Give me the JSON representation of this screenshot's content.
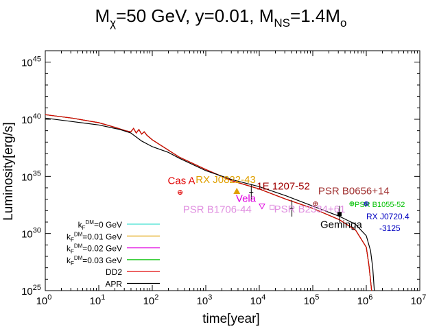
{
  "chart_data": {
    "type": "line",
    "title": "Mχ=50 GeV, y=0.01, MNS=1.4Mo",
    "title_parts": {
      "m1": "M",
      "s1": "χ",
      "t1": "=50 GeV, y=0.01, M",
      "s2": "NS",
      "t2": "=1.4M",
      "s3": "o"
    },
    "xlabel": "time[year]",
    "ylabel": "Luminosity[erg/s]",
    "xscale": "log",
    "yscale": "log",
    "xlim": [
      1,
      10000000
    ],
    "ylim": [
      1e+25,
      1e+46
    ],
    "grid": false,
    "legend_position": "bottom-left",
    "x_ticks": [
      {
        "exp": 0,
        "base": "10",
        "sup": "0"
      },
      {
        "exp": 1,
        "base": "10",
        "sup": "1"
      },
      {
        "exp": 2,
        "base": "10",
        "sup": "2"
      },
      {
        "exp": 3,
        "base": "10",
        "sup": "3"
      },
      {
        "exp": 4,
        "base": "10",
        "sup": "4"
      },
      {
        "exp": 5,
        "base": "10",
        "sup": "5"
      },
      {
        "exp": 6,
        "base": "10",
        "sup": "6"
      },
      {
        "exp": 7,
        "base": "10",
        "sup": "7"
      }
    ],
    "y_ticks": [
      {
        "exp": 25,
        "base": "10",
        "sup": "25"
      },
      {
        "exp": 30,
        "base": "10",
        "sup": "30"
      },
      {
        "exp": 35,
        "base": "10",
        "sup": "35"
      },
      {
        "exp": 40,
        "base": "10",
        "sup": "40"
      },
      {
        "exp": 45,
        "base": "10",
        "sup": "45"
      }
    ],
    "series": [
      {
        "name": "kFDM=0 GeV",
        "label_parts": [
          "k",
          "F",
          "DM",
          "=0 GeV"
        ],
        "color": "#40e0d0",
        "points": [
          [
            0,
            40.4
          ],
          [
            0.5,
            40.1
          ],
          [
            1,
            39.7
          ],
          [
            1.3,
            39.3
          ],
          [
            1.5,
            39.0
          ],
          [
            1.6,
            38.9
          ],
          [
            1.65,
            39.2
          ],
          [
            1.7,
            38.8
          ],
          [
            1.75,
            39.1
          ],
          [
            1.8,
            38.7
          ],
          [
            1.85,
            38.9
          ],
          [
            1.9,
            38.6
          ],
          [
            2,
            38.2
          ],
          [
            2.3,
            37.3
          ],
          [
            2.5,
            36.7
          ],
          [
            3,
            35.6
          ],
          [
            3.5,
            34.6
          ],
          [
            4,
            33.9
          ],
          [
            4.5,
            33.0
          ],
          [
            5,
            32.2
          ],
          [
            5.5,
            31.2
          ],
          [
            5.8,
            30.3
          ],
          [
            6,
            28.8
          ],
          [
            6.05,
            27.2
          ],
          [
            6.1,
            25.0
          ]
        ]
      },
      {
        "name": "kFDM=0.01 GeV",
        "label_parts": [
          "k",
          "F",
          "DM",
          "=0.01 GeV"
        ],
        "color": "#e0a000",
        "points": [
          [
            0,
            40.4
          ],
          [
            0.5,
            40.1
          ],
          [
            1,
            39.7
          ],
          [
            1.3,
            39.3
          ],
          [
            1.5,
            39.0
          ],
          [
            1.6,
            38.9
          ],
          [
            1.65,
            39.2
          ],
          [
            1.7,
            38.8
          ],
          [
            1.75,
            39.1
          ],
          [
            1.8,
            38.7
          ],
          [
            1.85,
            38.9
          ],
          [
            1.9,
            38.6
          ],
          [
            2,
            38.2
          ],
          [
            2.3,
            37.3
          ],
          [
            2.5,
            36.7
          ],
          [
            3,
            35.6
          ],
          [
            3.5,
            34.6
          ],
          [
            4,
            33.9
          ],
          [
            4.5,
            33.0
          ],
          [
            5,
            32.2
          ],
          [
            5.5,
            31.2
          ],
          [
            5.8,
            30.3
          ],
          [
            6,
            28.8
          ],
          [
            6.05,
            27.2
          ],
          [
            6.1,
            25.0
          ]
        ]
      },
      {
        "name": "kFDM=0.02 GeV",
        "label_parts": [
          "k",
          "F",
          "DM",
          "=0.02 GeV"
        ],
        "color": "#e000e0",
        "points": [
          [
            0,
            40.4
          ],
          [
            0.5,
            40.1
          ],
          [
            1,
            39.7
          ],
          [
            1.3,
            39.3
          ],
          [
            1.5,
            39.0
          ],
          [
            1.6,
            38.9
          ],
          [
            1.65,
            39.2
          ],
          [
            1.7,
            38.8
          ],
          [
            1.75,
            39.1
          ],
          [
            1.8,
            38.7
          ],
          [
            1.85,
            38.9
          ],
          [
            1.9,
            38.6
          ],
          [
            2,
            38.2
          ],
          [
            2.3,
            37.3
          ],
          [
            2.5,
            36.7
          ],
          [
            3,
            35.6
          ],
          [
            3.5,
            34.6
          ],
          [
            4,
            33.9
          ],
          [
            4.5,
            33.0
          ],
          [
            5,
            32.2
          ],
          [
            5.5,
            31.2
          ],
          [
            5.8,
            30.3
          ],
          [
            6,
            28.8
          ],
          [
            6.05,
            27.2
          ],
          [
            6.1,
            25.0
          ]
        ]
      },
      {
        "name": "kFDM=0.03 GeV",
        "label_parts": [
          "k",
          "F",
          "DM",
          "=0.03 GeV"
        ],
        "color": "#00c000",
        "points": [
          [
            0,
            40.4
          ],
          [
            0.5,
            40.1
          ],
          [
            1,
            39.7
          ],
          [
            1.3,
            39.3
          ],
          [
            1.5,
            39.0
          ],
          [
            1.6,
            38.9
          ],
          [
            1.65,
            39.2
          ],
          [
            1.7,
            38.8
          ],
          [
            1.75,
            39.1
          ],
          [
            1.8,
            38.7
          ],
          [
            1.85,
            38.9
          ],
          [
            1.9,
            38.6
          ],
          [
            2,
            38.2
          ],
          [
            2.3,
            37.3
          ],
          [
            2.5,
            36.7
          ],
          [
            3,
            35.6
          ],
          [
            3.5,
            34.6
          ],
          [
            4,
            33.9
          ],
          [
            4.5,
            33.0
          ],
          [
            5,
            32.2
          ],
          [
            5.5,
            31.2
          ],
          [
            5.8,
            30.3
          ],
          [
            6,
            28.8
          ],
          [
            6.05,
            27.2
          ],
          [
            6.1,
            25.0
          ]
        ]
      },
      {
        "name": "DD2",
        "label_parts": [
          "DD2"
        ],
        "color": "#e00000",
        "points": [
          [
            0,
            40.4
          ],
          [
            0.5,
            40.1
          ],
          [
            1,
            39.7
          ],
          [
            1.3,
            39.3
          ],
          [
            1.5,
            39.0
          ],
          [
            1.6,
            38.9
          ],
          [
            1.65,
            39.2
          ],
          [
            1.7,
            38.8
          ],
          [
            1.75,
            39.1
          ],
          [
            1.8,
            38.7
          ],
          [
            1.85,
            38.9
          ],
          [
            1.9,
            38.6
          ],
          [
            2,
            38.2
          ],
          [
            2.3,
            37.3
          ],
          [
            2.5,
            36.7
          ],
          [
            3,
            35.6
          ],
          [
            3.5,
            34.6
          ],
          [
            4,
            33.9
          ],
          [
            4.5,
            33.0
          ],
          [
            5,
            32.2
          ],
          [
            5.5,
            31.2
          ],
          [
            5.8,
            30.3
          ],
          [
            6,
            28.8
          ],
          [
            6.05,
            27.2
          ],
          [
            6.1,
            25.0
          ]
        ]
      },
      {
        "name": "APR",
        "label_parts": [
          "APR"
        ],
        "color": "#000000",
        "points": [
          [
            0,
            40.1
          ],
          [
            0.5,
            39.8
          ],
          [
            1,
            39.5
          ],
          [
            1.4,
            39.1
          ],
          [
            1.6,
            38.8
          ],
          [
            1.8,
            38.1
          ],
          [
            2,
            37.6
          ],
          [
            2.3,
            37.1
          ],
          [
            2.5,
            36.6
          ],
          [
            3,
            35.5
          ],
          [
            3.5,
            34.7
          ],
          [
            4,
            34.1
          ],
          [
            4.5,
            33.3
          ],
          [
            5,
            32.4
          ],
          [
            5.5,
            31.5
          ],
          [
            5.8,
            30.8
          ],
          [
            6,
            29.8
          ],
          [
            6.08,
            28.5
          ],
          [
            6.12,
            27.0
          ],
          [
            6.15,
            25.0
          ]
        ]
      }
    ],
    "observations": [
      {
        "name": "Cas A",
        "log_t": 2.52,
        "log_L": 33.6,
        "color": "#e00000",
        "marker": "circle-plus",
        "label_dx": -18,
        "label_dy": -12
      },
      {
        "name": "RX J0822-43",
        "log_t": 3.58,
        "log_L": 33.7,
        "color": "#e0a000",
        "marker": "triangle",
        "label_dx": -60,
        "label_dy": -12
      },
      {
        "name": "1E 1207-52",
        "log_t": 3.85,
        "log_L": 33.6,
        "color": "#a00000",
        "marker": "errbar",
        "label_dx": 8,
        "label_dy": -4
      },
      {
        "name": "Vela",
        "log_t": 4.05,
        "log_L": 32.4,
        "color": "#e000e0",
        "marker": "triangle-down",
        "label_dx": -38,
        "label_dy": -6
      },
      {
        "name": "PSR B1706-44",
        "log_t": 4.24,
        "log_L": 32.3,
        "color": "#e090e0",
        "marker": "square",
        "label_dx": -130,
        "label_dy": 8
      },
      {
        "name": "PSR B2334+61",
        "log_t": 4.61,
        "log_L": 32.2,
        "color": "#e090e0",
        "marker": "errbar",
        "label_dx": -26,
        "label_dy": 6
      },
      {
        "name": "PSR B0656+14",
        "log_t": 5.05,
        "log_L": 32.6,
        "color": "#a03030",
        "marker": "circle-plus",
        "label_dx": 4,
        "label_dy": -14
      },
      {
        "name": "Geminga",
        "log_t": 5.5,
        "log_L": 31.7,
        "color": "#000000",
        "marker": "square-filled",
        "label_dx": -28,
        "label_dy": 20
      },
      {
        "name": "PSR B1055-52",
        "log_t": 5.73,
        "log_L": 32.6,
        "color": "#00c000",
        "marker": "circle-plus",
        "label_dx": 0,
        "label_dy": 3
      },
      {
        "name": "RX J0720.4",
        "log_t": 6.0,
        "log_L": 32.6,
        "color": "#0000c0",
        "marker": "circle-plus",
        "label_dx": 0,
        "label_dy": 0
      },
      {
        "name": "-3125",
        "log_t": 6.0,
        "log_L": 32.6,
        "color": "#0000c0",
        "marker": "none",
        "label_dx": 0,
        "label_dy": 0
      }
    ]
  }
}
